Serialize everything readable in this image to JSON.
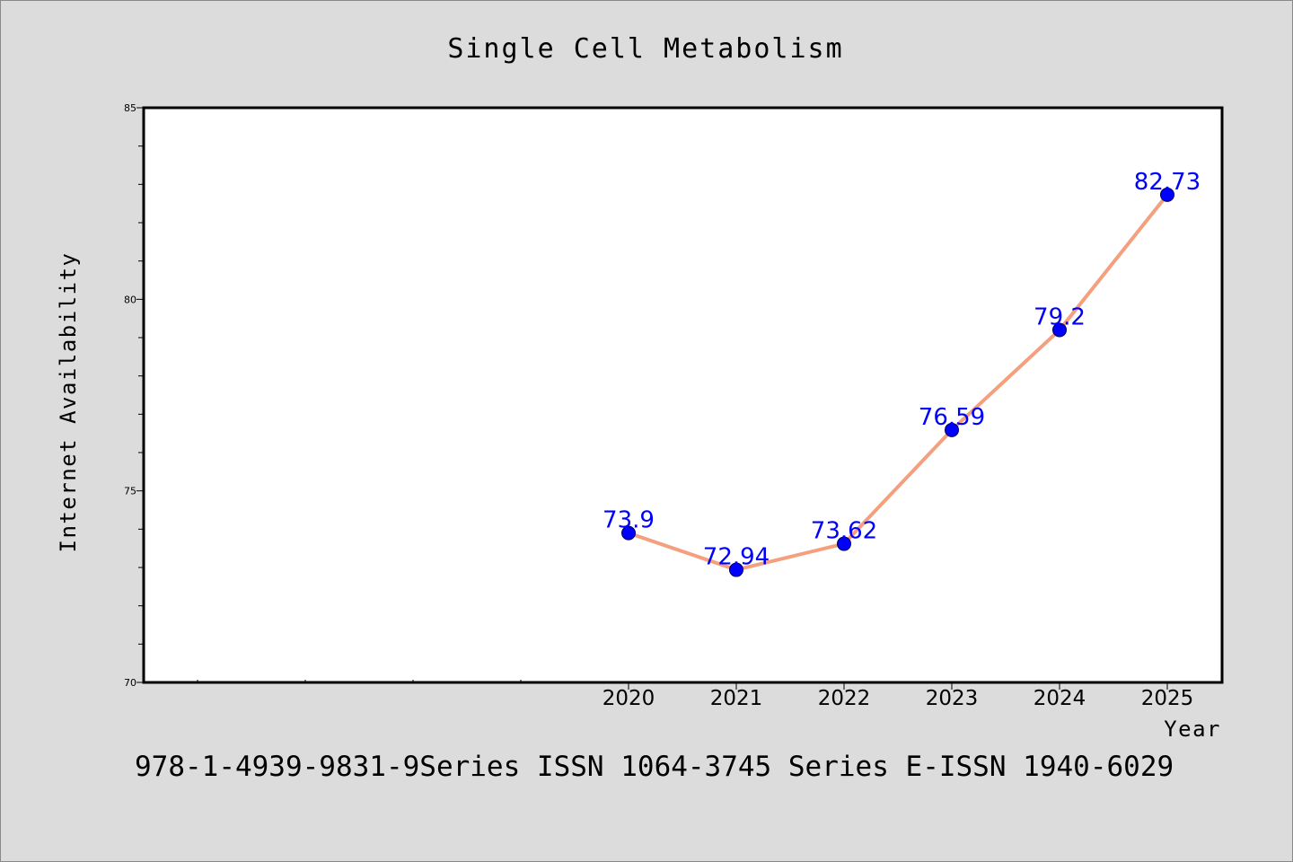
{
  "chart_data": {
    "type": "line",
    "title": "Single Cell Metabolism",
    "xlabel": "Year",
    "ylabel": "Internet Availability",
    "x": [
      "2020",
      "2021",
      "2022",
      "2023",
      "2024",
      "2025"
    ],
    "series": [
      {
        "values": [
          73.9,
          72.94,
          73.62,
          76.59,
          79.2,
          82.73
        ],
        "labels": [
          "73.9",
          "72.94",
          "73.62",
          "76.59",
          "79.2",
          "82.73"
        ]
      }
    ],
    "ylim": [
      70,
      85
    ],
    "y_ticks": [
      "70",
      "75",
      "80",
      "85"
    ],
    "grid": false,
    "legend": "none",
    "colors": {
      "line": "#f4a07f",
      "marker": "#0000ff",
      "label": "#0000ff",
      "plot_background": "#ffffff",
      "page_background": "#dcdcdc"
    }
  },
  "footer": {
    "text": "978-1-4939-9831-9Series ISSN 1064-3745 Series E-ISSN 1940-6029"
  }
}
